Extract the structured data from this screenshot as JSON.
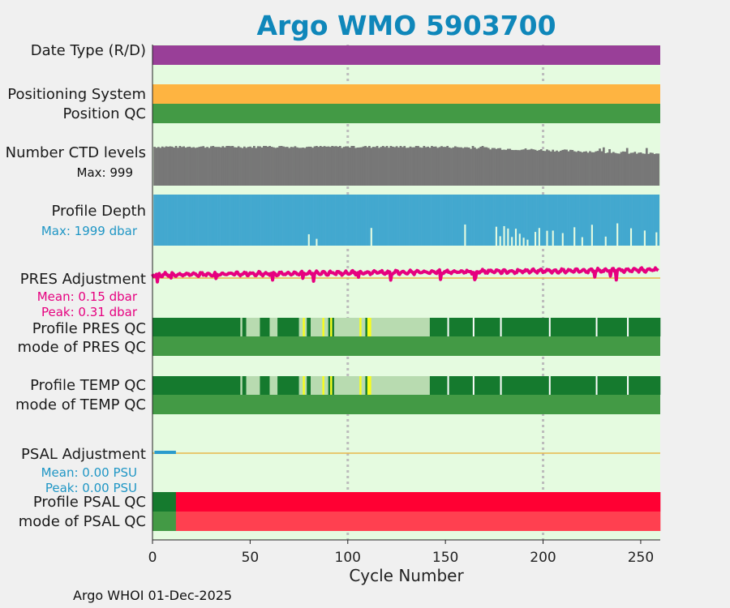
{
  "chart_data": {
    "type": "timeline",
    "title": "Argo WMO 5903700",
    "xlabel": "Cycle Number",
    "xlim": [
      0,
      260
    ],
    "xticks": [
      0,
      50,
      100,
      150,
      200,
      250
    ],
    "grid_x": [
      100,
      200
    ],
    "footer": "Argo WHOI 01-Dec-2025",
    "rows": {
      "date_type": {
        "label": "Date Type (R/D)",
        "color": "#993f98"
      },
      "positioning_system": {
        "label": "Positioning System",
        "color": "#feb441"
      },
      "position_qc": {
        "label": "Position QC",
        "color": "#439a45"
      },
      "ctd_levels": {
        "label": "Number CTD levels",
        "max_label": "Max: 999",
        "max": 999,
        "color": "#777777",
        "typical_fraction": 0.93,
        "late_fraction": 0.65
      },
      "profile_depth": {
        "label": "Profile Depth",
        "max_label": "Max: 1999 dbar",
        "max": 1999,
        "color": "#43a8cf",
        "gap_cycles": [
          80,
          84,
          112,
          160,
          176,
          178,
          180,
          182,
          184,
          186,
          188,
          190,
          192,
          196,
          198,
          202,
          205,
          210,
          216,
          220,
          225,
          232,
          238,
          245,
          252,
          258
        ]
      },
      "pres_adjustment": {
        "label": "PRES Adjustment",
        "mean_label": "Mean: 0.15 dbar",
        "peak_label": "Peak: 0.31 dbar",
        "mean": 0.15,
        "peak": 0.31,
        "color": "#e6007f"
      },
      "profile_pres_qc": {
        "label": "Profile PRES QC",
        "mode_label": "mode of PRES QC"
      },
      "profile_temp_qc": {
        "label": "Profile TEMP QC",
        "mode_label": "mode of TEMP QC"
      },
      "psal_adjustment": {
        "label": "PSAL Adjustment",
        "mean_label": "Mean: 0.00 PSU",
        "peak_label": "Peak: 0.00 PSU",
        "mean": 0.0,
        "peak": 0.0,
        "color": "#2b9bcc"
      },
      "profile_psal_qc": {
        "label": "Profile PSAL QC",
        "mode_label": "mode of PSAL QC"
      }
    },
    "qc_colors": {
      "A": "#157a2e",
      "B": "#b8dbb0",
      "C": "#f7fd1d",
      "mode_good": "#439a45",
      "F": "#ff0033",
      "F_mode": "#ff4050",
      "adj_line": "#e8b84a",
      "background": "#e5fbe0"
    },
    "pres_qc_segments": [
      {
        "from": 0,
        "to": 45,
        "grade": "A"
      },
      {
        "from": 45,
        "to": 46,
        "grade": "B"
      },
      {
        "from": 46,
        "to": 48,
        "grade": "A"
      },
      {
        "from": 48,
        "to": 55,
        "grade": "B"
      },
      {
        "from": 55,
        "to": 60,
        "grade": "A"
      },
      {
        "from": 60,
        "to": 64,
        "grade": "B"
      },
      {
        "from": 64,
        "to": 75,
        "grade": "A"
      },
      {
        "from": 75,
        "to": 77,
        "grade": "B"
      },
      {
        "from": 77,
        "to": 78,
        "grade": "C"
      },
      {
        "from": 78,
        "to": 79,
        "grade": "B"
      },
      {
        "from": 79,
        "to": 81,
        "grade": "A"
      },
      {
        "from": 81,
        "to": 87,
        "grade": "B"
      },
      {
        "from": 87,
        "to": 88,
        "grade": "C"
      },
      {
        "from": 88,
        "to": 90,
        "grade": "B"
      },
      {
        "from": 90,
        "to": 91,
        "grade": "A"
      },
      {
        "from": 91,
        "to": 92,
        "grade": "C"
      },
      {
        "from": 92,
        "to": 93,
        "grade": "A"
      },
      {
        "from": 93,
        "to": 106,
        "grade": "B"
      },
      {
        "from": 106,
        "to": 107,
        "grade": "C"
      },
      {
        "from": 107,
        "to": 109,
        "grade": "B"
      },
      {
        "from": 109,
        "to": 110,
        "grade": "A"
      },
      {
        "from": 110,
        "to": 112,
        "grade": "C"
      },
      {
        "from": 112,
        "to": 142,
        "grade": "B"
      },
      {
        "from": 142,
        "to": 260,
        "grade": "A"
      }
    ],
    "pres_qc_white_ticks": [
      151,
      164,
      178,
      203,
      227,
      243
    ],
    "psal_qc_segments": [
      {
        "from": 0,
        "to": 12,
        "grade": "A"
      },
      {
        "from": 12,
        "to": 260,
        "grade": "F"
      }
    ]
  }
}
